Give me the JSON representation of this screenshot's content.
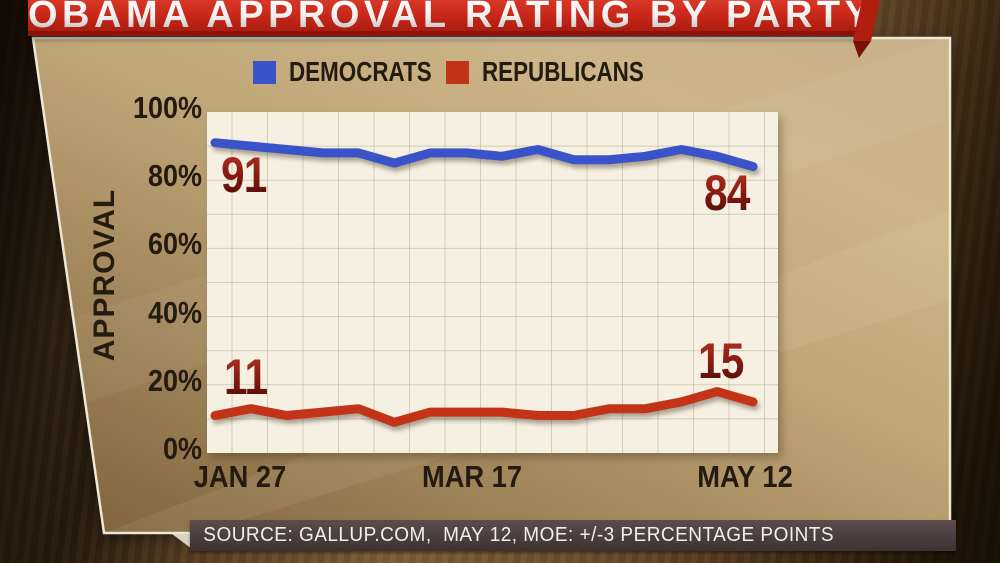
{
  "title": {
    "text": "OBAMA APPROVAL RATING BY PARTY"
  },
  "legend": {
    "items": [
      {
        "label": "DEMOCRATS",
        "color": "#3a53c8"
      },
      {
        "label": "REPUBLICANS",
        "color": "#c23318"
      }
    ]
  },
  "chart_data": {
    "type": "line",
    "title": "OBAMA APPROVAL RATING BY PARTY",
    "ylabel": "APPROVAL",
    "xlabel": "",
    "ylim": [
      0,
      100
    ],
    "grid": true,
    "legend_position": "top",
    "n_points": 16,
    "x_tick_labels": [
      "JAN 27",
      "MAR 17",
      "MAY 12"
    ],
    "x_tick_indices": [
      0,
      7,
      15
    ],
    "y_ticks": [
      {
        "label": "100%",
        "value": 100
      },
      {
        "label": "80%",
        "value": 80
      },
      {
        "label": "60%",
        "value": 60
      },
      {
        "label": "40%",
        "value": 40
      },
      {
        "label": "20%",
        "value": 20
      },
      {
        "label": "0%",
        "value": 0
      }
    ],
    "series": [
      {
        "name": "DEMOCRATS",
        "color": "#3a53c8",
        "values": [
          91,
          90,
          89,
          88,
          88,
          85,
          88,
          88,
          87,
          89,
          86,
          86,
          87,
          89,
          87,
          84
        ]
      },
      {
        "name": "REPUBLICANS",
        "color": "#c23318",
        "values": [
          11,
          13,
          11,
          12,
          13,
          9,
          12,
          12,
          12,
          11,
          11,
          13,
          13,
          15,
          18,
          15
        ]
      }
    ],
    "annotations": [
      {
        "text": "91%",
        "series": "DEMOCRATS",
        "point": "first"
      },
      {
        "text": "84%",
        "series": "DEMOCRATS",
        "point": "last"
      },
      {
        "text": "11%",
        "series": "REPUBLICANS",
        "point": "first"
      },
      {
        "text": "15%",
        "series": "REPUBLICANS",
        "point": "last"
      }
    ]
  },
  "source_bar": {
    "text": "SOURCE: GALLUP.COM,  MAY 12, MOE: +/-3 PERCENTAGE POINTS"
  },
  "colors": {
    "banner_red": "#c52618",
    "panel_gold": "#bfa678",
    "plot_background": "#f5f0e2",
    "data_label_maroon": "#7e1a10",
    "axis_text": "#231b10",
    "grid_line": "#b9ae8e"
  }
}
